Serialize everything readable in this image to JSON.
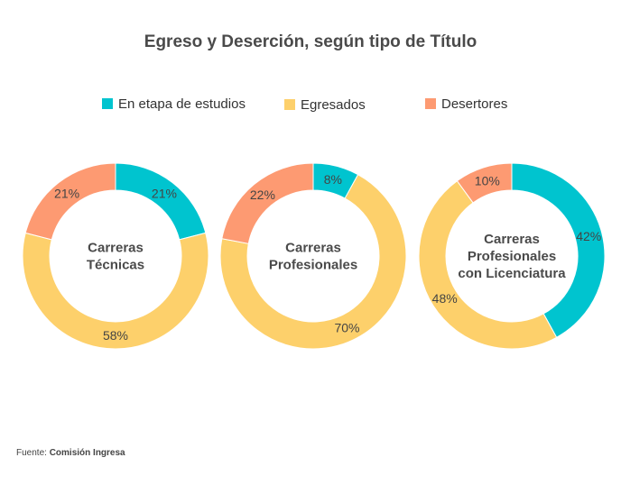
{
  "chart_data": {
    "type": "donut",
    "title": "Egreso y Deserción, según tipo de Título",
    "legend_position": "top",
    "series": [
      {
        "name": "En etapa de estudios",
        "color": "#00c4cf"
      },
      {
        "name": "Egresados",
        "color": "#fdd06b"
      },
      {
        "name": "Desertores",
        "color": "#fd9a72"
      }
    ],
    "charts": [
      {
        "center_label": [
          "Carreras",
          "Técnicas"
        ],
        "values": [
          21,
          58,
          21
        ],
        "labels": [
          "21%",
          "58%",
          "21%"
        ]
      },
      {
        "center_label": [
          "Carreras",
          "Profesionales"
        ],
        "values": [
          8,
          70,
          22
        ],
        "labels": [
          "8%",
          "70%",
          "22%"
        ]
      },
      {
        "center_label": [
          "Carreras",
          "Profesionales",
          "con Licenciatura"
        ],
        "values": [
          42,
          48,
          10
        ],
        "labels": [
          "42%",
          "48%",
          "10%"
        ]
      }
    ]
  },
  "source": {
    "prefix": "Fuente:",
    "name": "Comisión Ingresa"
  }
}
